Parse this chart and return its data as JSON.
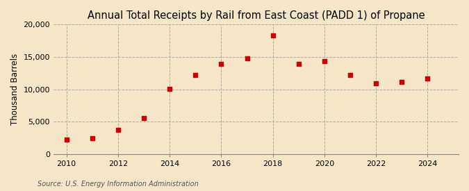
{
  "title": "Annual Total Receipts by Rail from East Coast (PADD 1) of Propane",
  "ylabel": "Thousand Barrels",
  "source": "Source: U.S. Energy Information Administration",
  "background_color": "#f5e6c8",
  "plot_background_color": "#f5e6c8",
  "marker_color": "#cc0000",
  "grid_color": "#aaaaaa",
  "years": [
    2010,
    2011,
    2012,
    2013,
    2014,
    2015,
    2016,
    2017,
    2018,
    2019,
    2020,
    2021,
    2022,
    2023,
    2024
  ],
  "values": [
    2200,
    2400,
    3700,
    5500,
    10100,
    12200,
    13900,
    14800,
    18300,
    13900,
    14300,
    12200,
    10900,
    11100,
    11700
  ],
  "ylim": [
    0,
    20000
  ],
  "yticks": [
    0,
    5000,
    10000,
    15000,
    20000
  ],
  "xlim": [
    2009.5,
    2025.2
  ],
  "xticks": [
    2010,
    2012,
    2014,
    2016,
    2018,
    2020,
    2022,
    2024
  ],
  "title_fontsize": 10.5,
  "label_fontsize": 8.5,
  "tick_fontsize": 8,
  "source_fontsize": 7
}
